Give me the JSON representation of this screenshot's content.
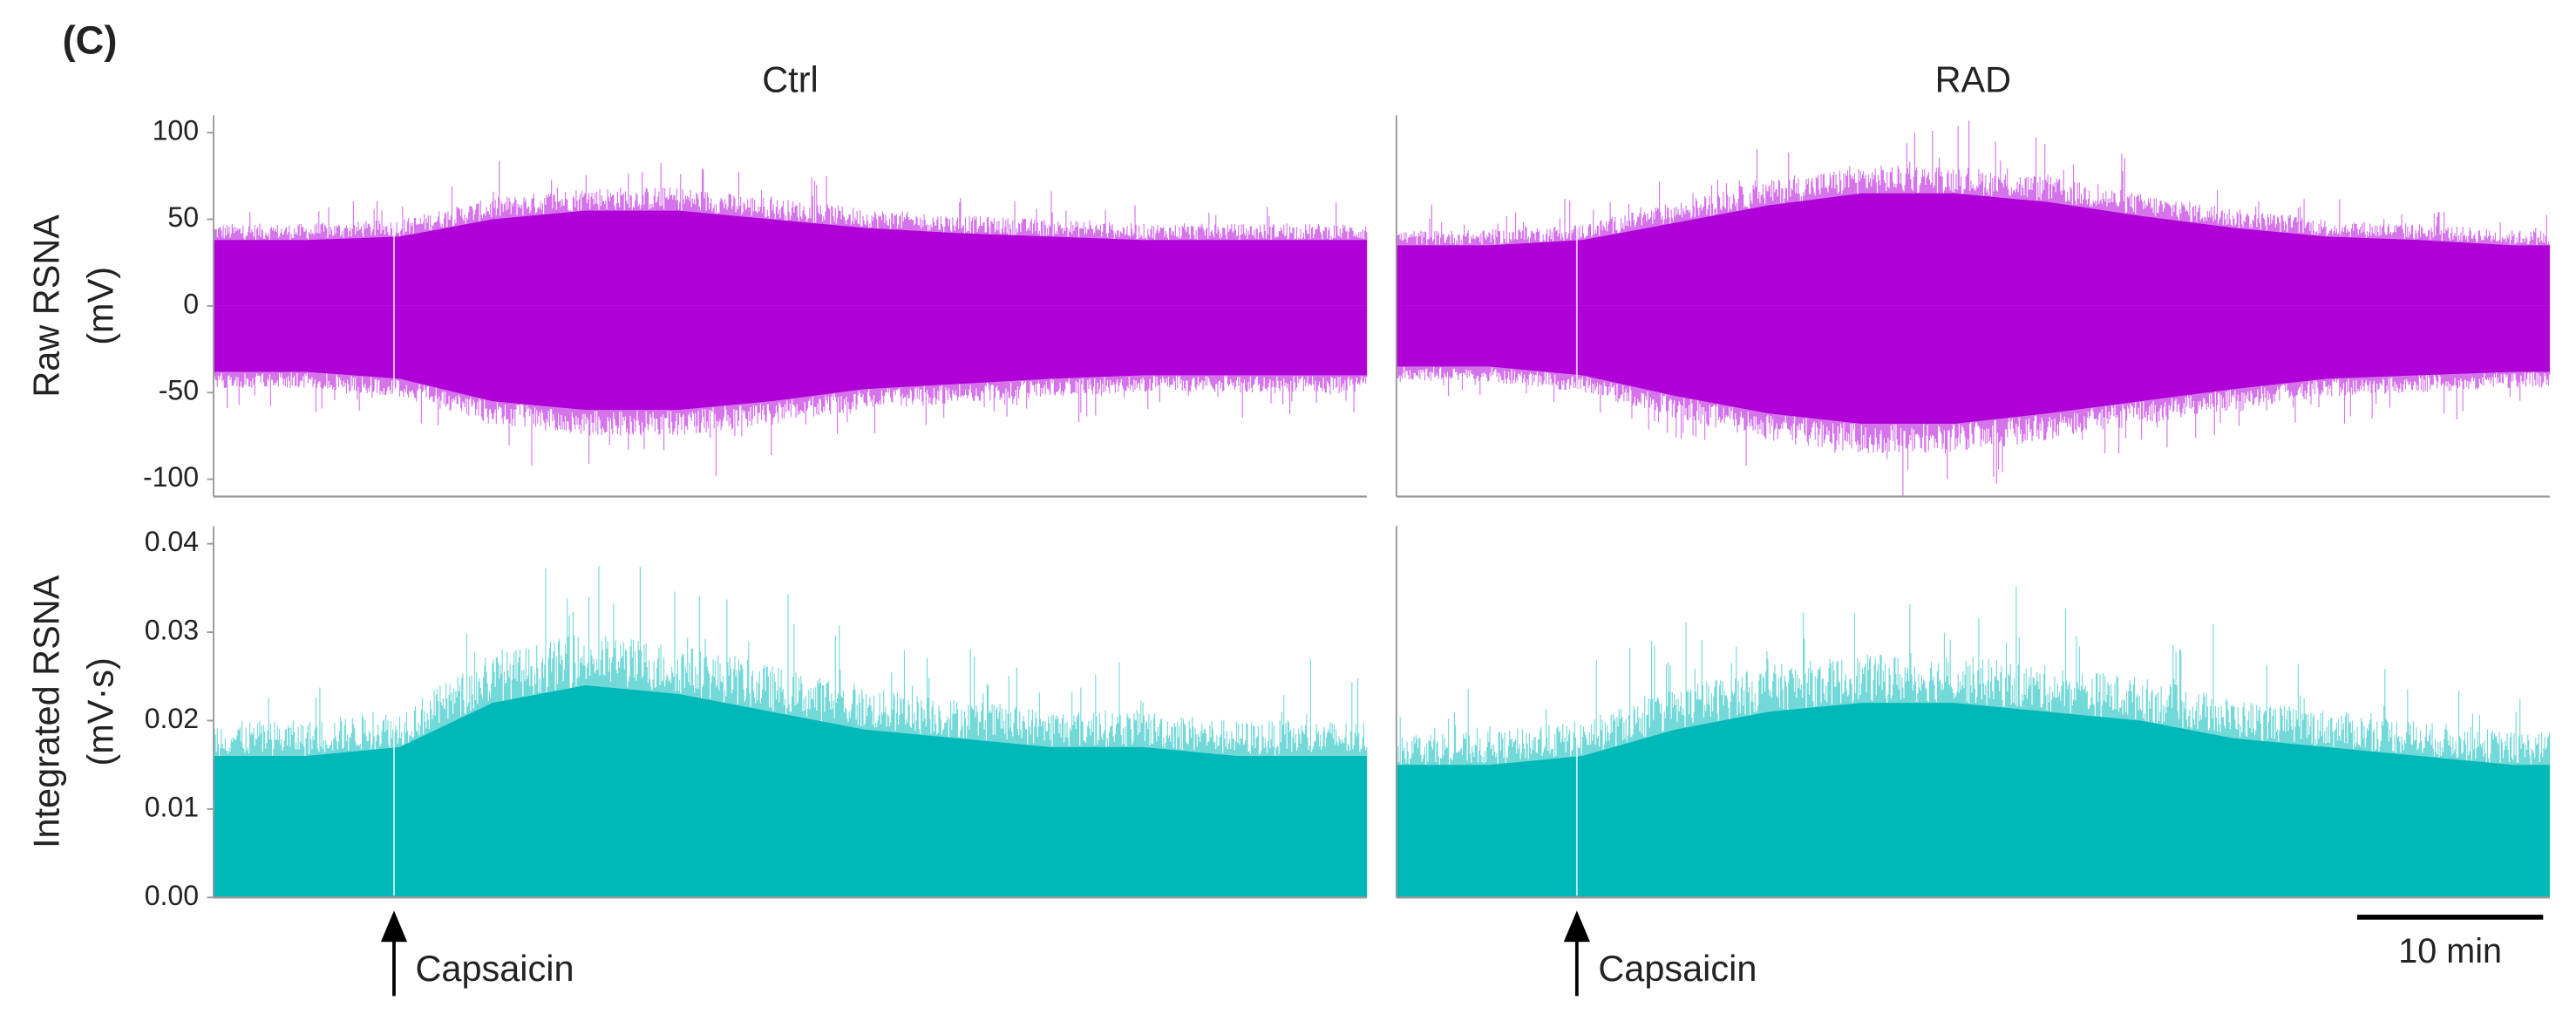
{
  "figure_label": "(C)",
  "chart_data": [
    {
      "type": "area",
      "title": "Ctrl",
      "ylabel": [
        "Raw RSNA",
        "(mV)"
      ],
      "x": [
        0,
        5,
        10,
        15,
        20,
        25,
        30,
        35,
        40,
        45,
        50,
        55,
        60
      ],
      "xlim": [
        0,
        62
      ],
      "ylim": [
        -110,
        110
      ],
      "yticks": [
        100,
        50,
        0,
        -50,
        -100
      ],
      "series": [
        {
          "color": "#b000d8",
          "values": [
            38,
            38,
            40,
            50,
            55,
            55,
            50,
            45,
            42,
            40,
            38,
            38,
            38
          ]
        },
        {
          "color": "#b000d8",
          "values": [
            -38,
            -38,
            -42,
            -55,
            -60,
            -60,
            -55,
            -48,
            -45,
            -42,
            -40,
            -40,
            -40
          ]
        }
      ]
    },
    {
      "type": "area",
      "title": "RAD",
      "x": [
        0,
        5,
        10,
        15,
        20,
        25,
        30,
        35,
        40,
        45,
        50,
        55,
        60
      ],
      "xlim": [
        0,
        62
      ],
      "ylim": [
        -110,
        110
      ],
      "series": [
        {
          "color": "#b000d8",
          "values": [
            35,
            35,
            38,
            48,
            58,
            65,
            65,
            60,
            52,
            45,
            40,
            38,
            35
          ]
        },
        {
          "color": "#b000d8",
          "values": [
            -35,
            -35,
            -40,
            -52,
            -62,
            -68,
            -68,
            -62,
            -55,
            -48,
            -42,
            -40,
            -38
          ]
        }
      ]
    },
    {
      "type": "area",
      "ylabel": [
        "Integrated RSNA",
        "(mV·s)"
      ],
      "x": [
        0,
        5,
        10,
        15,
        20,
        25,
        30,
        35,
        40,
        45,
        50,
        55,
        60
      ],
      "xlim": [
        0,
        62
      ],
      "ylim": [
        0,
        0.042
      ],
      "yticks": [
        0.04,
        0.03,
        0.02,
        0.01,
        {
          "value": 0,
          "label": "0.00"
        }
      ],
      "series": [
        {
          "color": "#00b8b8",
          "values": [
            0.016,
            0.016,
            0.017,
            0.022,
            0.024,
            0.023,
            0.021,
            0.019,
            0.018,
            0.017,
            0.017,
            0.016,
            0.016
          ]
        }
      ],
      "annotations": [
        {
          "text": "Capsaicin",
          "x": 9.7
        }
      ]
    },
    {
      "type": "area",
      "x": [
        0,
        5,
        10,
        15,
        20,
        25,
        30,
        35,
        40,
        45,
        50,
        55,
        60
      ],
      "xlim": [
        0,
        62
      ],
      "ylim": [
        0,
        0.042
      ],
      "series": [
        {
          "color": "#00b8b8",
          "values": [
            0.015,
            0.015,
            0.016,
            0.019,
            0.021,
            0.022,
            0.022,
            0.021,
            0.02,
            0.018,
            0.017,
            0.016,
            0.015
          ]
        }
      ],
      "annotations": [
        {
          "text": "Capsaicin",
          "x": 9.7
        }
      ],
      "scale_bar": {
        "length": 10,
        "label": "10 min"
      }
    }
  ]
}
